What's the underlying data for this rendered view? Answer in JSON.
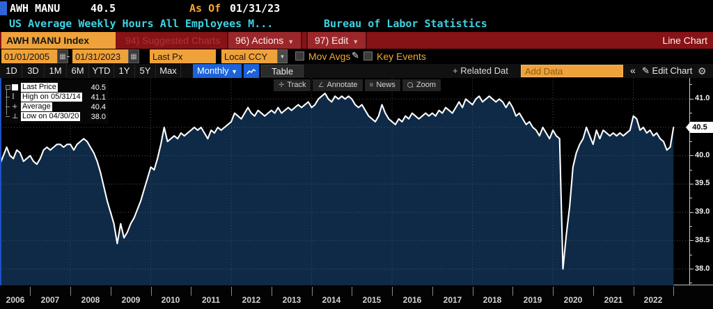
{
  "titlebar": {
    "ticker": "AWH MANU",
    "last_value": "40.5",
    "as_of_label": "As Of",
    "as_of_date": "01/31/23",
    "description": "US Average Weekly Hours All Employees M...",
    "source": "Bureau of Labor Statistics"
  },
  "menubar": {
    "security_label": "AWH MANU Index",
    "suggested_label": "94) Suggested Charts",
    "actions_label": "96) Actions",
    "edit_label": "97) Edit",
    "caret": "▼",
    "chart_type": "Line Chart"
  },
  "controls": {
    "start_date": "01/01/2005",
    "end_date": "01/31/2023",
    "dash": "-",
    "price_field": "Last Px",
    "currency": "Local CCY",
    "mov_avgs_label": "Mov Avgs",
    "key_events_label": "Key Events",
    "calendar_glyph": "▦",
    "pencil_glyph": "✎"
  },
  "toolbar": {
    "periods": [
      "1D",
      "3D",
      "1M",
      "6M",
      "YTD",
      "1Y",
      "5Y",
      "Max"
    ],
    "frequency": "Monthly",
    "freq_caret": "▼",
    "table_label": "Table",
    "related_plus": "+",
    "related_label": "Related Dat",
    "add_data_placeholder": "Add Data",
    "collapse_label": "«",
    "edit_chart_pencil": "✎",
    "edit_chart_label": "Edit Chart",
    "gear_glyph": "⚙"
  },
  "chart_tools": {
    "track": "Track",
    "annotate": "Annotate",
    "news": "News",
    "zoom": "Zoom"
  },
  "legend": {
    "rows": [
      {
        "icon": "square",
        "label": "Last Price",
        "value": "40.5"
      },
      {
        "icon": "high",
        "label": "High on 05/31/14",
        "value": "41.1"
      },
      {
        "icon": "average",
        "label": "Average",
        "value": "40.4"
      },
      {
        "icon": "low",
        "label": "Low on 04/30/20",
        "value": "38.0"
      }
    ]
  },
  "chart_data": {
    "type": "line",
    "title": "AWH MANU Index - US Average Weekly Hours All Employees Manufacturing",
    "frequency": "monthly",
    "start_month": "2006-03",
    "end_month": "2023-01",
    "x_axis_years": [
      2006,
      2007,
      2008,
      2009,
      2010,
      2011,
      2012,
      2013,
      2014,
      2015,
      2016,
      2017,
      2018,
      2019,
      2020,
      2021,
      2022
    ],
    "grid_years": [
      2008,
      2010,
      2012,
      2014,
      2016,
      2018,
      2020,
      2022
    ],
    "y_ticks": [
      38.0,
      38.5,
      39.0,
      39.5,
      40.0,
      40.5,
      41.0
    ],
    "y_tick_labels": [
      "38.0",
      "38.5",
      "39.0",
      "39.5",
      "40.0",
      "40.5",
      "41.0"
    ],
    "ylim": [
      37.7,
      41.4
    ],
    "grid": true,
    "legend_position": "top-left",
    "line_color": "#ffffff",
    "fill_color": "#0e2a47",
    "stats": {
      "last": 40.5,
      "high": 41.1,
      "high_date": "05/31/14",
      "average": 40.4,
      "low": 38.0,
      "low_date": "04/30/20"
    },
    "series": [
      {
        "name": "Last Price",
        "values": [
          39.9,
          39.85,
          40.0,
          40.15,
          40.0,
          39.95,
          40.1,
          40.05,
          39.9,
          39.95,
          40.0,
          39.9,
          39.85,
          39.95,
          40.1,
          40.15,
          40.1,
          40.15,
          40.2,
          40.2,
          40.15,
          40.2,
          40.2,
          40.1,
          40.2,
          40.25,
          40.3,
          40.25,
          40.15,
          40.05,
          39.9,
          39.7,
          39.45,
          39.2,
          39.0,
          38.8,
          38.45,
          38.8,
          38.55,
          38.65,
          38.8,
          38.9,
          39.05,
          39.2,
          39.4,
          39.6,
          39.8,
          39.75,
          39.95,
          40.2,
          40.5,
          40.25,
          40.3,
          40.35,
          40.3,
          40.4,
          40.35,
          40.4,
          40.45,
          40.5,
          40.45,
          40.5,
          40.4,
          40.3,
          40.45,
          40.4,
          40.5,
          40.45,
          40.5,
          40.55,
          40.6,
          40.75,
          40.7,
          40.65,
          40.75,
          40.85,
          40.75,
          40.7,
          40.8,
          40.75,
          40.7,
          40.75,
          40.8,
          40.75,
          40.85,
          40.75,
          40.8,
          40.85,
          40.8,
          40.85,
          40.9,
          40.85,
          40.9,
          40.95,
          40.85,
          40.9,
          41.0,
          41.05,
          41.1,
          41.0,
          40.95,
          41.05,
          41.0,
          41.05,
          41.0,
          41.05,
          41.0,
          40.9,
          40.85,
          40.9,
          40.8,
          40.7,
          40.65,
          40.6,
          40.7,
          40.9,
          40.75,
          40.65,
          40.6,
          40.55,
          40.65,
          40.6,
          40.7,
          40.65,
          40.75,
          40.7,
          40.65,
          40.7,
          40.75,
          40.7,
          40.75,
          40.7,
          40.8,
          40.75,
          40.85,
          40.8,
          40.75,
          40.85,
          40.95,
          40.85,
          41.0,
          40.95,
          40.9,
          41.0,
          41.05,
          40.95,
          41.0,
          41.05,
          41.0,
          40.95,
          41.0,
          40.95,
          40.85,
          40.95,
          40.85,
          40.7,
          40.75,
          40.65,
          40.55,
          40.6,
          40.5,
          40.45,
          40.35,
          40.5,
          40.4,
          40.3,
          40.45,
          40.35,
          40.3,
          38.0,
          38.6,
          39.1,
          39.8,
          40.05,
          40.2,
          40.3,
          40.5,
          40.35,
          40.2,
          40.45,
          40.3,
          40.45,
          40.4,
          40.35,
          40.4,
          40.35,
          40.4,
          40.35,
          40.4,
          40.45,
          40.7,
          40.65,
          40.45,
          40.5,
          40.4,
          40.45,
          40.35,
          40.4,
          40.3,
          40.25,
          40.1,
          40.15,
          40.5
        ]
      }
    ]
  }
}
